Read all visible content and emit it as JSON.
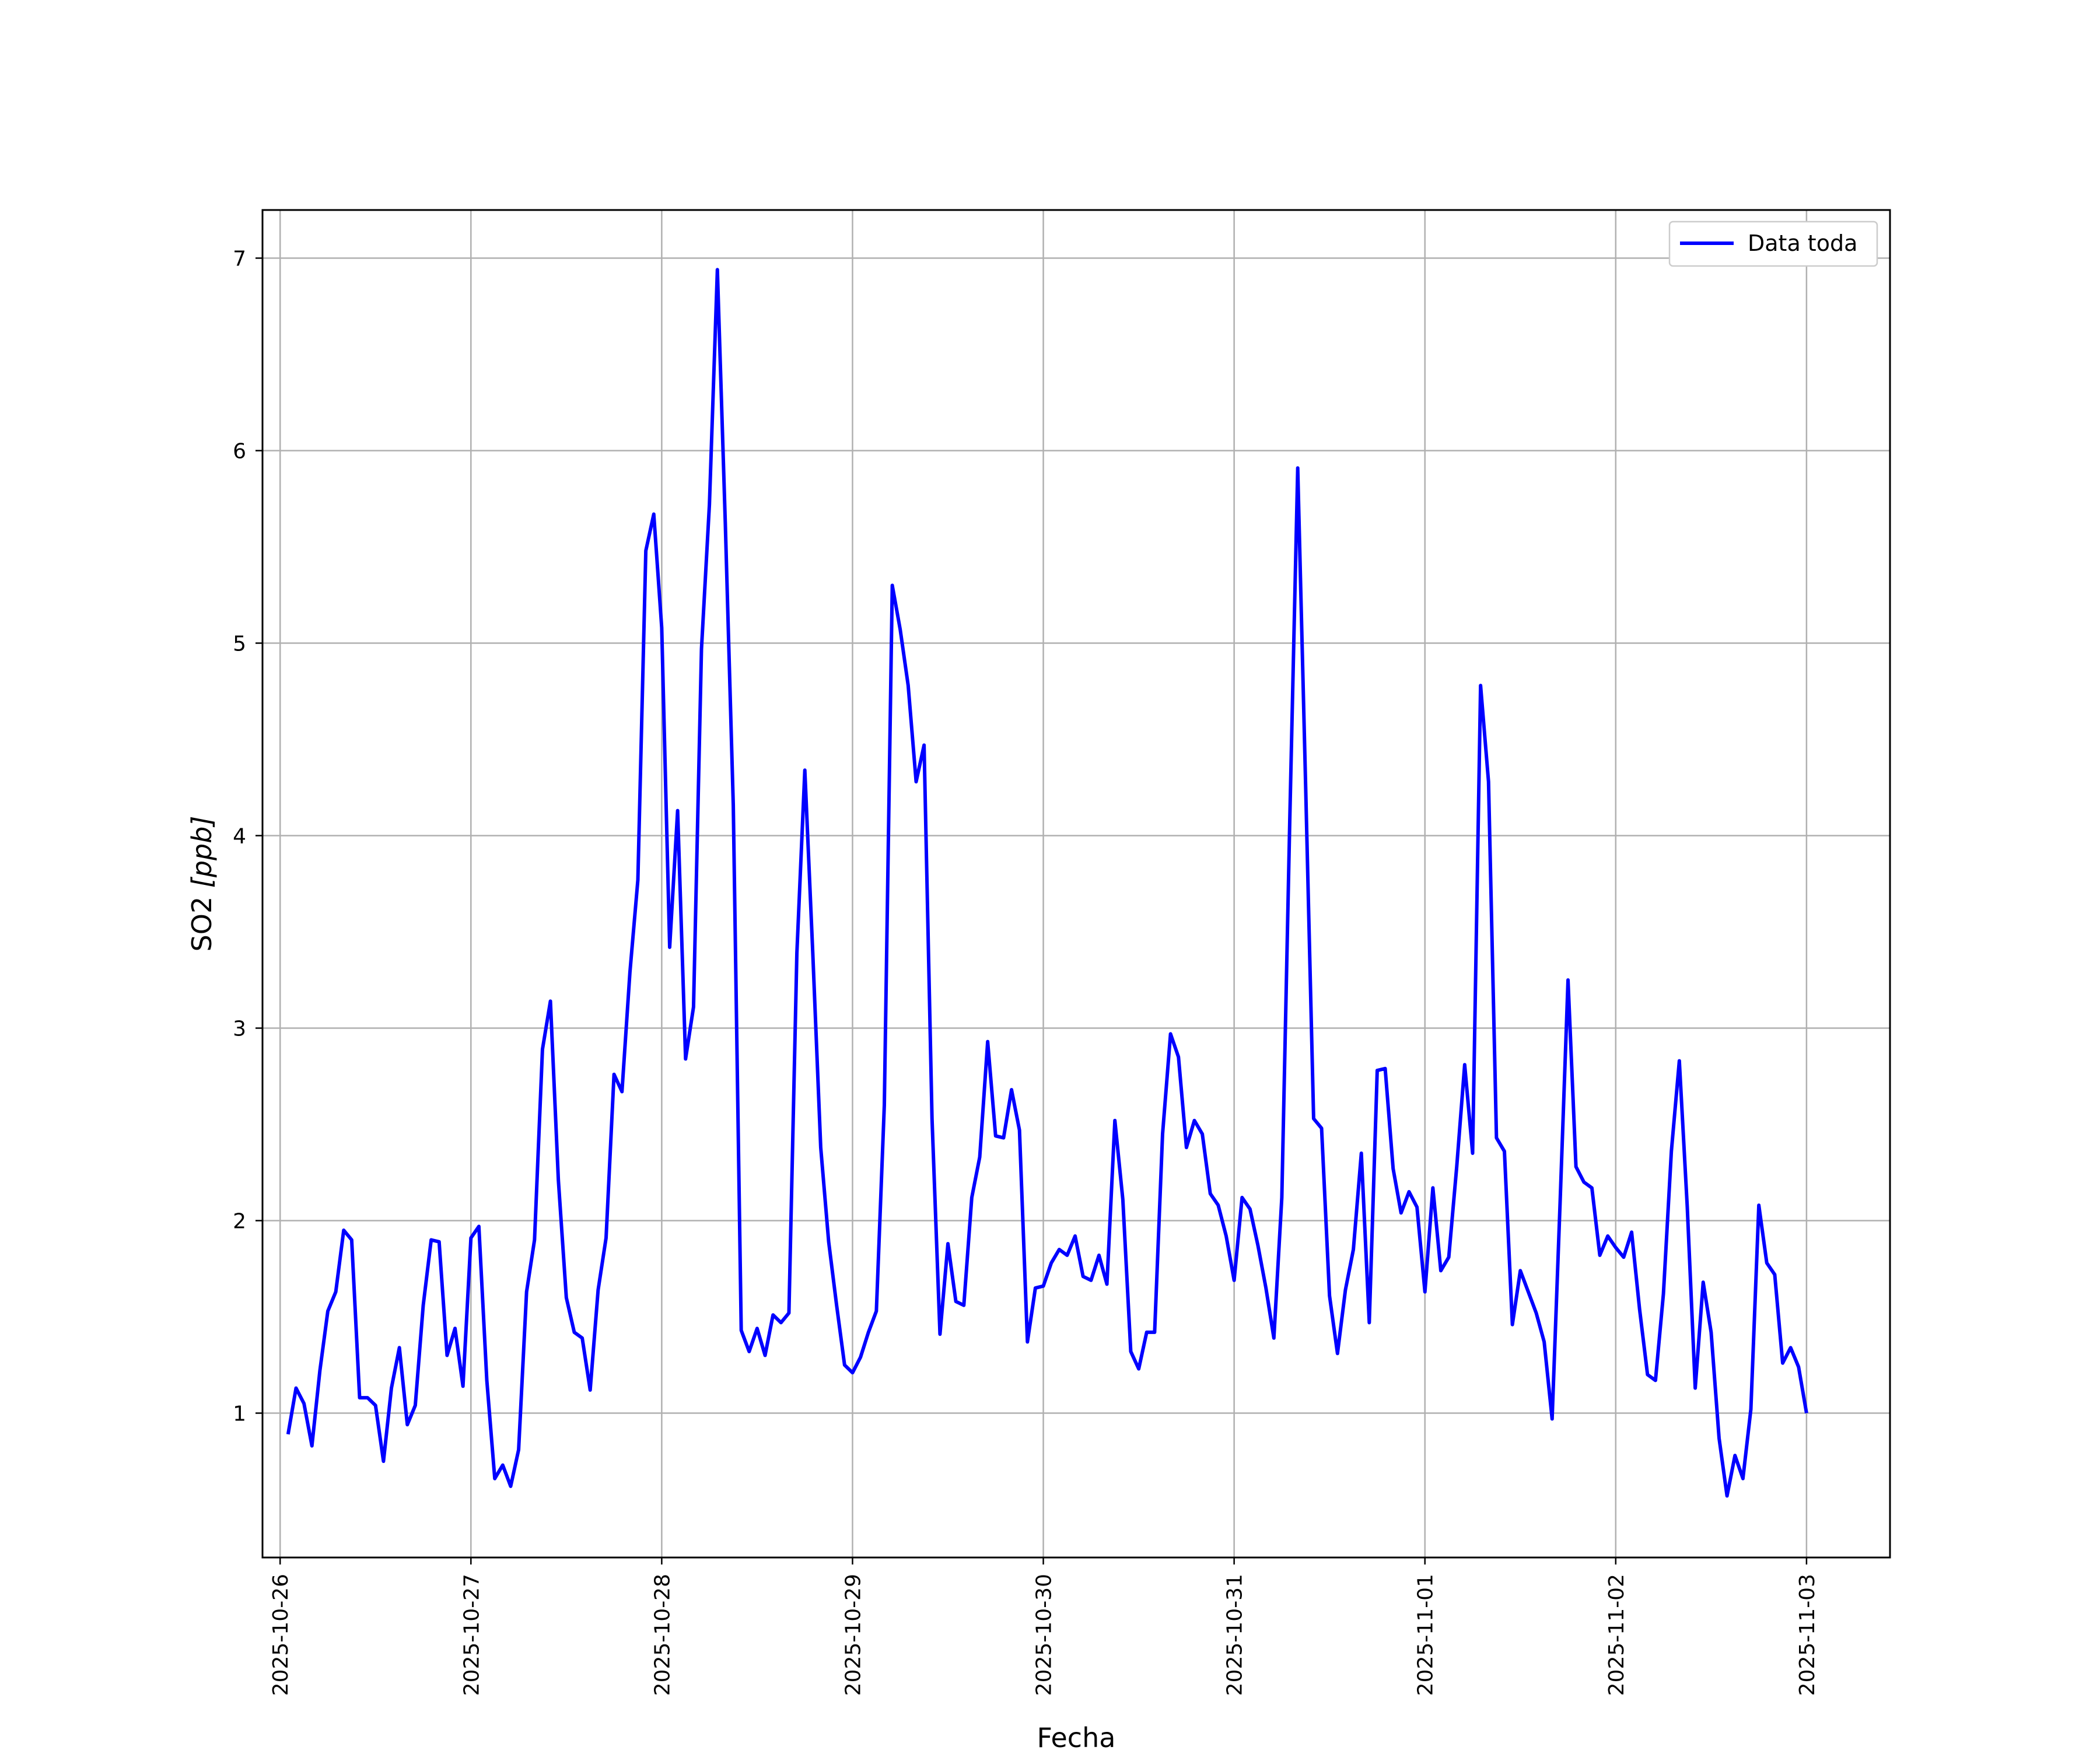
{
  "chart_data": {
    "type": "line",
    "xlabel": "Fecha",
    "ylabel_main": "SO2 ",
    "ylabel_unit": "[ppb]",
    "x_start": "2025-10-26",
    "xlim": [
      "2025-10-25T21:47",
      "2025-11-03T10:30"
    ],
    "ylim": [
      0.25,
      7.25
    ],
    "grid": true,
    "legend_position": "top-right",
    "x_ticks": [
      "2025-10-26",
      "2025-10-27",
      "2025-10-28",
      "2025-10-29",
      "2025-10-30",
      "2025-10-31",
      "2025-11-01",
      "2025-11-02",
      "2025-11-03"
    ],
    "y_ticks": [
      1,
      2,
      3,
      4,
      5,
      6,
      7
    ],
    "series": [
      {
        "name": "Data toda",
        "color": "#0000ff",
        "x_hours_step": 1,
        "x_first": "2025-10-26T01:00",
        "values": [
          0.89,
          1.13,
          1.05,
          0.83,
          1.22,
          1.53,
          1.63,
          1.95,
          1.9,
          1.08,
          1.08,
          1.04,
          0.75,
          1.13,
          1.34,
          0.94,
          1.04,
          1.56,
          1.9,
          1.89,
          1.3,
          1.44,
          1.14,
          1.91,
          1.97,
          1.17,
          0.66,
          0.73,
          0.62,
          0.81,
          1.63,
          1.9,
          2.89,
          3.14,
          2.21,
          1.6,
          1.42,
          1.39,
          1.12,
          1.64,
          1.91,
          2.76,
          2.67,
          3.29,
          3.77,
          5.48,
          5.67,
          5.08,
          3.42,
          4.13,
          2.84,
          3.11,
          4.97,
          5.72,
          6.94,
          5.62,
          4.16,
          1.43,
          1.32,
          1.44,
          1.3,
          1.51,
          1.47,
          1.52,
          3.39,
          4.34,
          3.39,
          2.38,
          1.89,
          1.56,
          1.25,
          1.21,
          1.29,
          1.42,
          1.53,
          2.6,
          5.3,
          5.07,
          4.78,
          4.28,
          4.47,
          2.53,
          1.41,
          1.88,
          1.58,
          1.56,
          2.12,
          2.33,
          2.93,
          2.44,
          2.43,
          2.68,
          2.47,
          1.37,
          1.65,
          1.66,
          1.78,
          1.85,
          1.82,
          1.92,
          1.71,
          1.69,
          1.82,
          1.67,
          2.52,
          2.11,
          1.32,
          1.23,
          1.42,
          1.42,
          2.45,
          2.97,
          2.85,
          2.38,
          2.52,
          2.45,
          2.14,
          2.08,
          1.92,
          1.69,
          2.12,
          2.06,
          1.87,
          1.65,
          1.39,
          2.12,
          4.08,
          5.91,
          4.25,
          2.53,
          2.48,
          1.61,
          1.31,
          1.64,
          1.85,
          2.35,
          1.47,
          2.78,
          2.79,
          2.27,
          2.04,
          2.15,
          2.07,
          1.63,
          2.17,
          1.74,
          1.81,
          2.28,
          2.81,
          2.35,
          4.78,
          4.28,
          2.43,
          2.36,
          1.46,
          1.74,
          1.63,
          1.52,
          1.37,
          0.97,
          2.09,
          3.25,
          2.28,
          2.2,
          2.17,
          1.82,
          1.92,
          1.86,
          1.81,
          1.94,
          1.54,
          1.2,
          1.17,
          1.62,
          2.36,
          2.83,
          2.07,
          1.13,
          1.68,
          1.42,
          0.87,
          0.57,
          0.78,
          0.66,
          1.02,
          2.08,
          1.78,
          1.72,
          1.26,
          1.34,
          1.24,
          1.0
        ]
      }
    ]
  }
}
